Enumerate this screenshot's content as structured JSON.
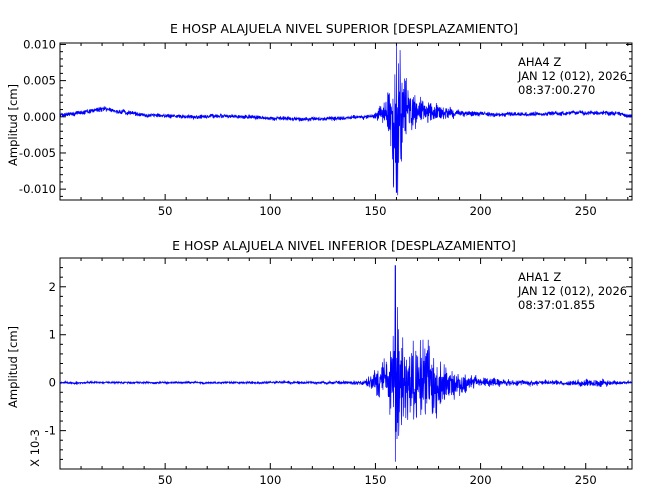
{
  "colors": {
    "trace": "#0000ff",
    "axes": "#000000",
    "background": "#ffffff"
  },
  "chart_data": [
    {
      "type": "line",
      "title": "E HOSP ALAJUELA NIVEL SUPERIOR [DESPLAZAMIENTO]",
      "ylabel": "Amplitud [cm]",
      "xlabel": "",
      "xlim": [
        0,
        272
      ],
      "ylim": [
        -0.0115,
        0.0102
      ],
      "x_ticks": [
        50,
        100,
        150,
        200,
        250
      ],
      "x_tick_labels": [
        "50",
        "100",
        "150",
        "200",
        "250"
      ],
      "y_ticks": [
        0.01,
        0.005,
        0.0,
        -0.005,
        -0.01
      ],
      "y_tick_labels": [
        "0.010",
        "0.005",
        "0.000",
        "-0.005",
        "-0.010"
      ],
      "annotation": [
        "AHA4   Z",
        "JAN 12 (012), 2026",
        "08:37:00.270"
      ],
      "scale_note": "",
      "series": [
        {
          "values_envelope": {
            "x": [
              0,
              20,
              40,
              60,
              80,
              100,
              120,
              140,
              150,
              155,
              158,
              160,
              162,
              165,
              170,
              180,
              190,
              200,
              210,
              230,
              250,
              265,
              272
            ],
            "mean": [
              0.0002,
              0.001,
              0.0003,
              0.0,
              0.0001,
              -0.0002,
              -0.0003,
              -0.0001,
              0.0,
              0.0004,
              0.0004,
              0.001,
              0.0008,
              0.0007,
              0.0007,
              0.0006,
              0.0005,
              0.0004,
              0.0003,
              0.0004,
              0.0006,
              0.0005,
              0.0001
            ],
            "amp": [
              0.00025,
              0.0003,
              0.00025,
              0.00025,
              0.00025,
              0.00025,
              0.00025,
              0.00025,
              0.0004,
              0.0018,
              0.0045,
              0.01,
              0.007,
              0.0035,
              0.0018,
              0.001,
              0.0005,
              0.0003,
              0.00025,
              0.00025,
              0.0003,
              0.00025,
              0.0002
            ]
          },
          "peak": {
            "x": 160,
            "max": 0.01,
            "min": -0.0105
          }
        }
      ]
    },
    {
      "type": "line",
      "title": "E HOSP ALAJUELA NIVEL INFERIOR [DESPLAZAMIENTO]",
      "ylabel": "Amplitud [cm]",
      "xlabel": "",
      "xlim": [
        0,
        272
      ],
      "ylim": [
        -1.8,
        2.6
      ],
      "x_ticks": [
        50,
        100,
        150,
        200,
        250
      ],
      "x_tick_labels": [
        "50",
        "100",
        "150",
        "200",
        "250"
      ],
      "y_ticks": [
        2,
        1,
        0,
        -1
      ],
      "y_tick_labels": [
        "2",
        "1",
        "0",
        "-1"
      ],
      "annotation": [
        "AHA1   Z",
        "JAN 12 (012), 2026",
        "08:37:01.855"
      ],
      "scale_note": "X 10-3",
      "series": [
        {
          "values_envelope": {
            "x": [
              0,
              40,
              80,
              120,
              145,
              150,
              153,
              156,
              158,
              160,
              162,
              165,
              170,
              175,
              180,
              190,
              200,
              210,
              220,
              240,
              258,
              262,
              272
            ],
            "mean": [
              0,
              0,
              0,
              0,
              0,
              0,
              0,
              0,
              0,
              0,
              0,
              0,
              0,
              0,
              0,
              0,
              0,
              0,
              0,
              0,
              0,
              0,
              0
            ],
            "amp": [
              0.02,
              0.02,
              0.02,
              0.025,
              0.04,
              0.25,
              0.35,
              0.45,
              0.8,
              1.6,
              1.0,
              0.9,
              0.75,
              0.65,
              0.45,
              0.2,
              0.1,
              0.06,
              0.05,
              0.04,
              0.08,
              0.05,
              0.02
            ]
          },
          "peak": {
            "x": 159.5,
            "max": 2.45,
            "min": -1.65
          }
        }
      ]
    }
  ]
}
